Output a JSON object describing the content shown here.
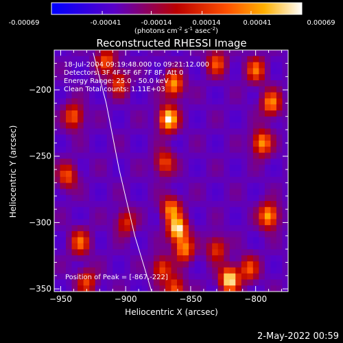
{
  "chart_data": {
    "type": "heatmap",
    "title": "Reconstructed RHESSI Image",
    "xlabel": "Heliocentric X (arcsec)",
    "ylabel": "Heliocentric Y (arcsec)",
    "xlim": [
      -955,
      -775
    ],
    "ylim": [
      -352,
      -170
    ],
    "x_ticks": [
      -950,
      -900,
      -850,
      -800
    ],
    "x_tick_labels": [
      "−950",
      "−900",
      "−850",
      "−800"
    ],
    "y_ticks": [
      -200,
      -250,
      -300,
      -350
    ],
    "y_tick_labels": [
      "−200",
      "−250",
      "−300",
      "−350"
    ],
    "colorbar": {
      "range": [
        -0.00069,
        0.00069
      ],
      "ticks": [
        -0.00069,
        -0.00041,
        -0.00014,
        0.00014,
        0.00041,
        0.00069
      ],
      "tick_labels": [
        "-0.00069",
        "-0.00041",
        "-0.00014",
        "0.00014",
        "0.00041",
        "0.00069"
      ],
      "label_pre": "(photons cm",
      "label_sup1": "-2",
      "label_mid1": " s",
      "label_sup2": "-1",
      "label_mid2": " asec",
      "label_sup3": "-2",
      "label_post": ")",
      "colors": [
        "#0000ff",
        "#5a00c8",
        "#bb0000",
        "#ff5000",
        "#ffb000",
        "#ffffff"
      ]
    },
    "annotations": {
      "time": "18-Jul-2004 09:19:48.000 to 09:21:12.000",
      "detectors": "Detectors: 3F 4F 5F 6F 7F 8F, Att 0",
      "energy": "Energy Range: 25.0 - 50.0 keV",
      "clean": "Clean     Total counts: 1.11E+03",
      "peak": "Position of Peak = [-867,-222]"
    },
    "peak": [
      -867,
      -222
    ],
    "limb_curve_points": [
      [
        -925,
        -172
      ],
      [
        -915,
        -210
      ],
      [
        -905,
        -260
      ],
      [
        -893,
        -310
      ],
      [
        -880,
        -352
      ]
    ],
    "blobs": [
      {
        "x": -867,
        "y": -222,
        "v": 1.0
      },
      {
        "x": -863,
        "y": -196,
        "v": 0.75
      },
      {
        "x": -870,
        "y": -255,
        "v": 0.55
      },
      {
        "x": -865,
        "y": -290,
        "v": 0.7
      },
      {
        "x": -860,
        "y": -305,
        "v": 0.95
      },
      {
        "x": -855,
        "y": -320,
        "v": 0.7
      },
      {
        "x": -872,
        "y": -335,
        "v": 0.55
      },
      {
        "x": -862,
        "y": -350,
        "v": 0.6
      },
      {
        "x": -915,
        "y": -178,
        "v": 0.55
      },
      {
        "x": -905,
        "y": -195,
        "v": 0.5
      },
      {
        "x": -940,
        "y": -220,
        "v": 0.6
      },
      {
        "x": -945,
        "y": -265,
        "v": 0.55
      },
      {
        "x": -935,
        "y": -315,
        "v": 0.6
      },
      {
        "x": -930,
        "y": -345,
        "v": 0.5
      },
      {
        "x": -900,
        "y": -300,
        "v": 0.45
      },
      {
        "x": -820,
        "y": -343,
        "v": 1.0
      },
      {
        "x": -805,
        "y": -335,
        "v": 0.55
      },
      {
        "x": -790,
        "y": -295,
        "v": 0.8
      },
      {
        "x": -795,
        "y": -240,
        "v": 0.75
      },
      {
        "x": -788,
        "y": -210,
        "v": 0.7
      },
      {
        "x": -800,
        "y": -185,
        "v": 0.6
      },
      {
        "x": -830,
        "y": -180,
        "v": 0.55
      },
      {
        "x": -830,
        "y": -320,
        "v": 0.5
      }
    ]
  },
  "timestamp": "2-May-2022 00:59"
}
